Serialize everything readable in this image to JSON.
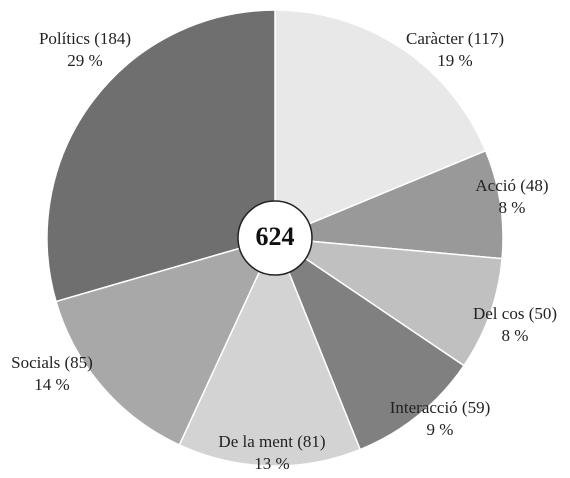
{
  "chart_data": {
    "type": "pie",
    "categories": [
      "Caràcter (117)",
      "Acció (48)",
      "Del cos (50)",
      "Interacció (59)",
      "De la ment (81)",
      "Socials (85)",
      "Polítics (184)"
    ],
    "values": [
      117,
      48,
      50,
      59,
      81,
      85,
      184
    ],
    "value_labels": [
      "19 %",
      "8 %",
      "8 %",
      "9 %",
      "13 %",
      "14 %",
      "29 %"
    ],
    "colors": [
      "#e8e8e8",
      "#999999",
      "#c0c0c0",
      "#808080",
      "#d3d3d3",
      "#a8a8a8",
      "#6f6f6f"
    ],
    "total": 624
  }
}
